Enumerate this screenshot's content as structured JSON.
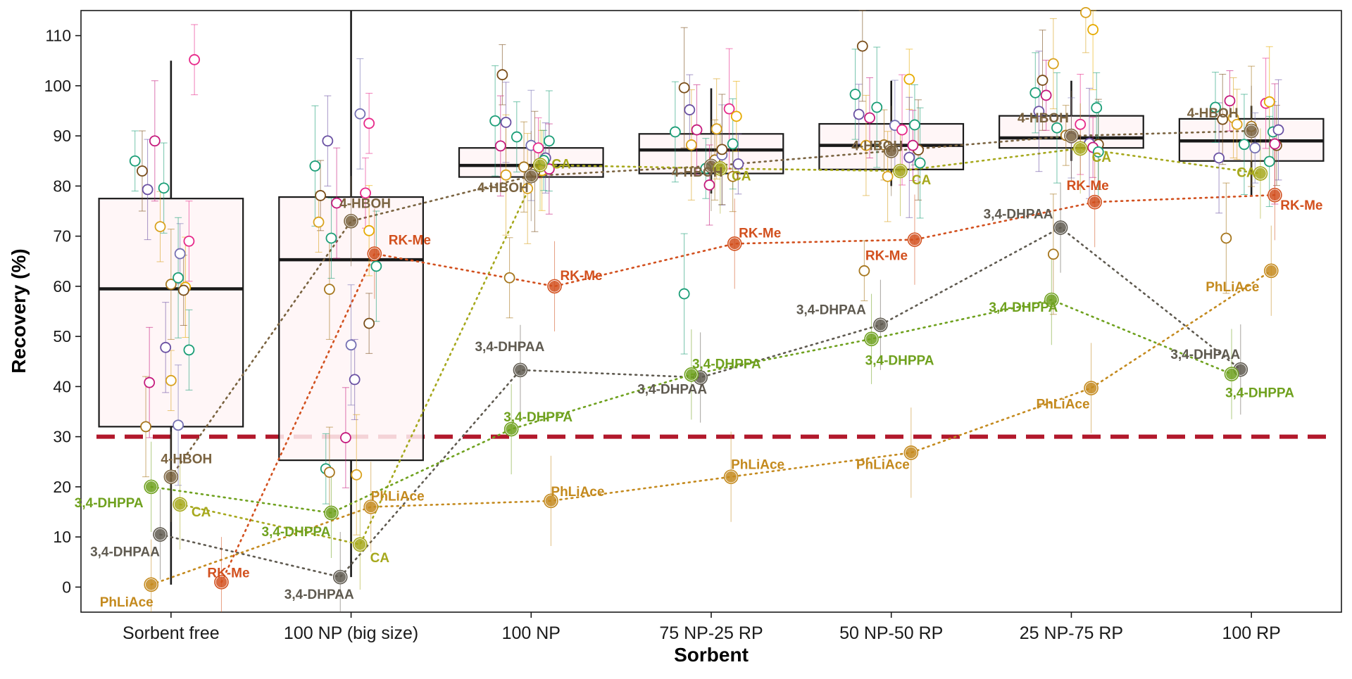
{
  "chart_data": {
    "type": "box+scatter",
    "xlabel": "Sorbent",
    "ylabel": "Recovery (%)",
    "categories": [
      "Sorbent free",
      "100 NP (big size)",
      "100 NP",
      "75 NP-25 RP",
      "50 NP-50 RP",
      "25 NP-75 RP",
      "100 RP"
    ],
    "ylim": [
      -5,
      115
    ],
    "yticks": [
      0,
      10,
      20,
      30,
      40,
      50,
      60,
      70,
      80,
      90,
      100,
      110
    ],
    "threshold": {
      "value": 30,
      "color": "#B2182B"
    },
    "boxes": [
      {
        "q1": 32,
        "median": 59.5,
        "q3": 77.5,
        "wlo": 0.5,
        "whi": 105
      },
      {
        "q1": 25.3,
        "median": 65.3,
        "q3": 77.8,
        "wlo": 2,
        "whi": 115
      },
      {
        "q1": 81.8,
        "median": 84.1,
        "q3": 87.6,
        "wlo": 81.8,
        "whi": 87.6
      },
      {
        "q1": 82.5,
        "median": 87.2,
        "q3": 90.4,
        "wlo": 78.5,
        "whi": 99.5
      },
      {
        "q1": 83.3,
        "median": 88.1,
        "q3": 92.4,
        "wlo": 80,
        "whi": 101
      },
      {
        "q1": 87.6,
        "median": 89.6,
        "q3": 94.0,
        "wlo": 85,
        "whi": 101
      },
      {
        "q1": 85.0,
        "median": 89.0,
        "q3": 93.4,
        "wlo": 78,
        "whi": 96
      }
    ],
    "series": [
      {
        "name": "4-HBOH",
        "color": "#7A6340",
        "values": [
          22,
          73,
          82,
          84,
          87,
          90,
          91
        ],
        "labels": [
          "4-HBOH",
          "4-HBOH",
          "4-HBOH",
          "4-HBOH",
          "4-HBOH",
          "4-HBOH",
          "4-HBOH"
        ]
      },
      {
        "name": "CA",
        "color": "#A6A81C",
        "values": [
          16.5,
          8.5,
          84.2,
          83.5,
          83,
          87.5,
          82.5
        ],
        "labels": [
          "CA",
          "CA",
          "CA",
          "CA",
          "CA",
          "CA",
          "CA"
        ]
      },
      {
        "name": "RK-Me",
        "color": "#D2501E",
        "values": [
          1,
          66.5,
          60,
          68.5,
          69.3,
          76.8,
          78.2
        ],
        "labels": [
          "RK-Me",
          "RK-Me",
          "RK-Me",
          "RK-Me",
          "RK-Me",
          "RK-Me",
          "RK-Me"
        ]
      },
      {
        "name": "3,4-DHPAA",
        "color": "#5F5A50",
        "values": [
          10.5,
          2,
          43.3,
          41.8,
          52.3,
          71.7,
          43.4
        ],
        "labels": [
          "3,4-DHPAA",
          "3,4-DHPAA",
          "3,4-DHPAA",
          "3,4-DHPAA",
          "3,4-DHPAA",
          "3,4-DHPAA",
          "3,4-DHPAA"
        ]
      },
      {
        "name": "3,4-DHPPA",
        "color": "#6FA11E",
        "values": [
          20,
          14.8,
          31.5,
          42.4,
          49.5,
          57.3,
          42.5
        ],
        "labels": [
          "3,4-DHPPA",
          "3,4-DHPPA",
          "3,4-DHPPA",
          "3,4-DHPPA",
          "3,4-DHPPA",
          "3,4-DHPPA",
          "3,4-DHPPA"
        ]
      },
      {
        "name": "PhLiAce",
        "color": "#C48A1E",
        "values": [
          0.5,
          16,
          17.2,
          22,
          26.8,
          39.7,
          63.1
        ],
        "labels": [
          "PhLiAce",
          "PhLiAce",
          "PhLiAce",
          "PhLiAce",
          "PhLiAce",
          "PhLiAce",
          "PhLiAce"
        ]
      }
    ],
    "scatter_colors": [
      "#1B9E77",
      "#7A4E1A",
      "#6A51A3",
      "#C51B7D",
      "#D9A21E",
      "#1B9E77",
      "#A6761D",
      "#7570B3",
      "#E7298A",
      "#E6AB02"
    ],
    "scatter": [
      [
        [
          -0.2,
          85
        ],
        [
          -0.16,
          83
        ],
        [
          -0.13,
          79.3
        ],
        [
          -0.09,
          89
        ],
        [
          -0.06,
          71.9
        ],
        [
          -0.04,
          79.6
        ],
        [
          0.0,
          60.4
        ],
        [
          0.05,
          66.5
        ],
        [
          0.1,
          69
        ],
        [
          0.08,
          59.8
        ],
        [
          0.04,
          61.7
        ],
        [
          0.07,
          59.2
        ],
        [
          -0.03,
          47.8
        ],
        [
          -0.12,
          40.8
        ],
        [
          0.0,
          41.2
        ],
        [
          0.1,
          47.3
        ],
        [
          -0.14,
          32
        ],
        [
          0.04,
          32.3
        ],
        [
          0.13,
          105.2
        ]
      ],
      [
        [
          -0.2,
          84
        ],
        [
          -0.17,
          78.1
        ],
        [
          -0.13,
          89
        ],
        [
          -0.08,
          76.6
        ],
        [
          -0.18,
          72.8
        ],
        [
          -0.11,
          69.6
        ],
        [
          -0.12,
          59.4
        ],
        [
          0.0,
          48.3
        ],
        [
          0.08,
          78.6
        ],
        [
          0.1,
          71.1
        ],
        [
          0.14,
          64
        ],
        [
          0.1,
          52.6
        ],
        [
          0.02,
          41.4
        ],
        [
          -0.03,
          29.8
        ],
        [
          0.03,
          22.4
        ],
        [
          -0.14,
          23.6
        ],
        [
          -0.12,
          22.9
        ],
        [
          0.05,
          94.4
        ],
        [
          0.1,
          92.5
        ]
      ],
      [
        [
          -0.2,
          93
        ],
        [
          -0.16,
          102.2
        ],
        [
          -0.14,
          92.7
        ],
        [
          -0.17,
          88
        ],
        [
          -0.14,
          82.2
        ],
        [
          -0.08,
          89.8
        ],
        [
          -0.04,
          83.8
        ],
        [
          0.0,
          88.1
        ],
        [
          0.04,
          87.6
        ],
        [
          0.06,
          83.1
        ],
        [
          0.1,
          89
        ],
        [
          0.02,
          82.9
        ],
        [
          0.08,
          85.6
        ],
        [
          0.1,
          83.4
        ],
        [
          -0.02,
          79.5
        ],
        [
          0.07,
          85.1
        ],
        [
          -0.12,
          61.7
        ]
      ],
      [
        [
          -0.2,
          90.8
        ],
        [
          -0.15,
          99.6
        ],
        [
          -0.12,
          95.2
        ],
        [
          -0.08,
          91.2
        ],
        [
          -0.11,
          88.2
        ],
        [
          -0.03,
          83.5
        ],
        [
          0.02,
          85.2
        ],
        [
          0.06,
          86.2
        ],
        [
          0.1,
          95.4
        ],
        [
          0.14,
          93.9
        ],
        [
          0.12,
          88.4
        ],
        [
          0.06,
          87.3
        ],
        [
          0.15,
          84.4
        ],
        [
          -0.01,
          80.2
        ],
        [
          0.03,
          91.4
        ],
        [
          -0.15,
          58.5
        ],
        [
          0.12,
          81.9
        ]
      ],
      [
        [
          -0.2,
          98.3
        ],
        [
          -0.16,
          107.9
        ],
        [
          -0.18,
          94.3
        ],
        [
          -0.12,
          93.6
        ],
        [
          -0.14,
          88.1
        ],
        [
          -0.08,
          95.7
        ],
        [
          -0.04,
          88.2
        ],
        [
          0.02,
          92.1
        ],
        [
          0.06,
          91.2
        ],
        [
          0.1,
          101.3
        ],
        [
          0.13,
          92.2
        ],
        [
          0.15,
          87.2
        ],
        [
          0.1,
          85.7
        ],
        [
          0.12,
          88.1
        ],
        [
          -0.02,
          81.9
        ],
        [
          0.16,
          84.6
        ],
        [
          -0.15,
          63.1
        ]
      ],
      [
        [
          -0.2,
          98.6
        ],
        [
          -0.16,
          101.1
        ],
        [
          -0.18,
          94.9
        ],
        [
          -0.14,
          98.1
        ],
        [
          -0.1,
          104.4
        ],
        [
          -0.08,
          91.6
        ],
        [
          -0.03,
          90.1
        ],
        [
          0.0,
          89.6
        ],
        [
          0.05,
          92.3
        ],
        [
          0.12,
          111.2
        ],
        [
          0.14,
          95.6
        ],
        [
          0.15,
          88.3
        ],
        [
          0.1,
          88.5
        ],
        [
          0.12,
          87.7
        ],
        [
          0.08,
          114.6
        ],
        [
          0.15,
          86.8
        ],
        [
          -0.1,
          66.4
        ]
      ],
      [
        [
          -0.2,
          95.7
        ],
        [
          -0.16,
          93.3
        ],
        [
          -0.18,
          85.6
        ],
        [
          -0.12,
          97
        ],
        [
          -0.1,
          93.6
        ],
        [
          -0.04,
          88.3
        ],
        [
          0.0,
          91.9
        ],
        [
          0.02,
          87.6
        ],
        [
          0.08,
          96.5
        ],
        [
          0.1,
          96.8
        ],
        [
          0.12,
          90.8
        ],
        [
          0.14,
          88.1
        ],
        [
          0.15,
          91.2
        ],
        [
          0.13,
          88.4
        ],
        [
          -0.08,
          92.3
        ],
        [
          0.1,
          84.9
        ],
        [
          -0.14,
          69.6
        ]
      ]
    ]
  }
}
